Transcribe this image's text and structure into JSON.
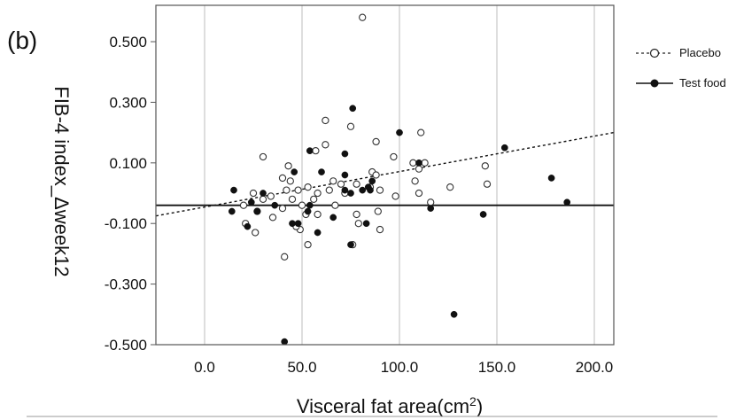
{
  "panel_label": "(b)",
  "chart_data": {
    "type": "scatter",
    "xlabel": "Visceral fat area(cm",
    "xlabel_sup": "2",
    "xlabel_close": ")",
    "ylabel": "FIB-4 index_Δweek12",
    "xlim": [
      -25,
      210
    ],
    "ylim": [
      -0.5,
      0.62
    ],
    "xticks": [
      "0.0",
      "50.0",
      "100.0",
      "150.0",
      "200.0"
    ],
    "xtick_values": [
      0,
      50,
      100,
      150,
      200
    ],
    "yticks": [
      "0.500",
      "0.300",
      "0.100",
      "-0.100",
      "-0.300",
      "-0.500"
    ],
    "ytick_values": [
      0.5,
      0.3,
      0.1,
      -0.1,
      -0.3,
      -0.5
    ],
    "grid": "vertical",
    "legend_position": "right",
    "series": [
      {
        "name": "Placebo",
        "marker": "open-circle",
        "line_style": "dotted",
        "fit": {
          "x0": -25,
          "y0": -0.075,
          "x1": 210,
          "y1": 0.2
        },
        "points": [
          [
            81,
            0.58
          ],
          [
            62,
            0.24
          ],
          [
            75,
            0.22
          ],
          [
            111,
            0.2
          ],
          [
            88,
            0.17
          ],
          [
            62,
            0.16
          ],
          [
            57,
            0.14
          ],
          [
            97,
            0.12
          ],
          [
            30,
            0.12
          ],
          [
            113,
            0.1
          ],
          [
            107,
            0.1
          ],
          [
            144,
            0.09
          ],
          [
            86,
            0.07
          ],
          [
            43,
            0.09
          ],
          [
            110,
            0.08
          ],
          [
            88,
            0.06
          ],
          [
            108,
            0.04
          ],
          [
            145,
            0.03
          ],
          [
            40,
            0.05
          ],
          [
            44,
            0.04
          ],
          [
            70,
            0.03
          ],
          [
            78,
            0.03
          ],
          [
            66,
            0.04
          ],
          [
            85,
            0.02
          ],
          [
            53,
            0.02
          ],
          [
            64,
            0.01
          ],
          [
            48,
            0.01
          ],
          [
            126,
            0.02
          ],
          [
            90,
            0.01
          ],
          [
            58,
            0.0
          ],
          [
            98,
            -0.01
          ],
          [
            42,
            0.01
          ],
          [
            110,
            0.0
          ],
          [
            72,
            0.0
          ],
          [
            25,
            0.0
          ],
          [
            34,
            -0.01
          ],
          [
            30,
            -0.02
          ],
          [
            45,
            -0.02
          ],
          [
            56,
            -0.02
          ],
          [
            67,
            -0.04
          ],
          [
            116,
            -0.03
          ],
          [
            50,
            -0.04
          ],
          [
            40,
            -0.05
          ],
          [
            27,
            -0.06
          ],
          [
            20,
            -0.04
          ],
          [
            35,
            -0.08
          ],
          [
            52,
            -0.07
          ],
          [
            58,
            -0.07
          ],
          [
            78,
            -0.07
          ],
          [
            89,
            -0.06
          ],
          [
            79,
            -0.1
          ],
          [
            21,
            -0.1
          ],
          [
            90,
            -0.12
          ],
          [
            49,
            -0.12
          ],
          [
            26,
            -0.13
          ],
          [
            47,
            -0.11
          ],
          [
            53,
            -0.17
          ],
          [
            76,
            -0.17
          ],
          [
            41,
            -0.21
          ]
        ]
      },
      {
        "name": "Test food",
        "marker": "filled-circle",
        "line_style": "solid",
        "fit": {
          "x0": -25,
          "y0": -0.04,
          "x1": 210,
          "y1": -0.04
        },
        "points": [
          [
            76,
            0.28
          ],
          [
            100,
            0.2
          ],
          [
            154,
            0.15
          ],
          [
            54,
            0.14
          ],
          [
            72,
            0.13
          ],
          [
            110,
            0.1
          ],
          [
            46,
            0.07
          ],
          [
            60,
            0.07
          ],
          [
            178,
            0.05
          ],
          [
            72,
            0.06
          ],
          [
            86,
            0.04
          ],
          [
            84,
            0.02
          ],
          [
            85,
            0.01
          ],
          [
            72,
            0.01
          ],
          [
            81,
            0.01
          ],
          [
            30,
            0.0
          ],
          [
            15,
            0.01
          ],
          [
            75,
            0.0
          ],
          [
            24,
            -0.03
          ],
          [
            54,
            -0.04
          ],
          [
            36,
            -0.04
          ],
          [
            186,
            -0.03
          ],
          [
            53,
            -0.06
          ],
          [
            14,
            -0.06
          ],
          [
            116,
            -0.05
          ],
          [
            27,
            -0.06
          ],
          [
            143,
            -0.07
          ],
          [
            66,
            -0.08
          ],
          [
            58,
            -0.13
          ],
          [
            45,
            -0.1
          ],
          [
            48,
            -0.1
          ],
          [
            83,
            -0.1
          ],
          [
            22,
            -0.11
          ],
          [
            75,
            -0.17
          ],
          [
            128,
            -0.4
          ],
          [
            41,
            -0.49
          ]
        ]
      }
    ]
  }
}
